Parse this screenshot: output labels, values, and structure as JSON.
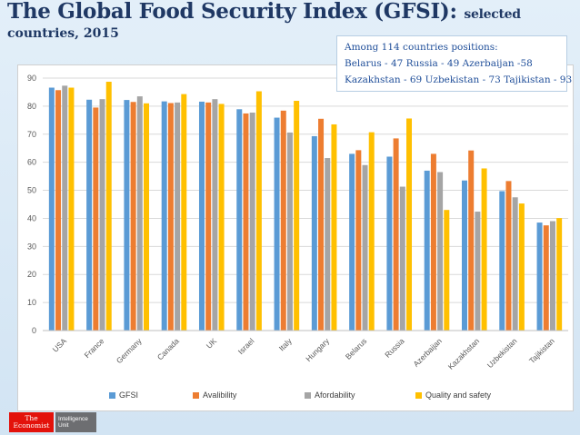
{
  "slide": {
    "title_main": "The Global Food Security Index (GFSI):",
    "title_small": "selected",
    "title_line2": "countries, 2015"
  },
  "note": {
    "line1": "Among 114 countries positions:",
    "line2": "Belarus - 47 Russia - 49 Azerbaijan -58",
    "line3": "Kazakhstan - 69 Uzbekistan - 73 Tajikistan - 93"
  },
  "logo": {
    "brand_line1": "The",
    "brand_line2": "Economist",
    "unit_line1": "Intelligence",
    "unit_line2": "Unit"
  },
  "chart_data": {
    "type": "bar",
    "title": "The Global Food Security Index (GFSI): selected countries, 2015",
    "xlabel": "",
    "ylabel": "",
    "ylim": [
      0,
      90
    ],
    "yticks": [
      0,
      10,
      20,
      30,
      40,
      50,
      60,
      70,
      80,
      90
    ],
    "grid": true,
    "legend_position": "bottom",
    "categories": [
      "USA",
      "France",
      "Germany",
      "Canada",
      "UK",
      "Israel",
      "Italy",
      "Hungary",
      "Belarus",
      "Russia",
      "Azerbaijan",
      "Kazakhstan",
      "Uzbekistan",
      "Tajikistan"
    ],
    "series": [
      {
        "name": "GFSI",
        "color": "#5b9bd5",
        "values": [
          86.6,
          82.3,
          82.2,
          81.7,
          81.6,
          78.9,
          75.9,
          69.3,
          63.0,
          62.0,
          57.0,
          53.5,
          49.7,
          38.5
        ]
      },
      {
        "name": "Avalibility",
        "color": "#ed7d31",
        "values": [
          85.7,
          79.5,
          81.5,
          81.1,
          81.3,
          77.4,
          78.4,
          75.5,
          64.3,
          68.5,
          63.0,
          64.2,
          53.3,
          37.5
        ]
      },
      {
        "name": "Afordability",
        "color": "#a5a5a5",
        "values": [
          87.3,
          82.5,
          83.5,
          81.3,
          82.5,
          77.7,
          70.6,
          61.5,
          59.0,
          51.3,
          56.5,
          42.4,
          47.5,
          39.0
        ]
      },
      {
        "name": "Quality and safety",
        "color": "#ffc000",
        "values": [
          86.6,
          88.7,
          81.0,
          84.3,
          80.8,
          85.3,
          81.9,
          73.5,
          70.7,
          75.6,
          43.0,
          57.8,
          45.3,
          40.1
        ]
      }
    ]
  }
}
